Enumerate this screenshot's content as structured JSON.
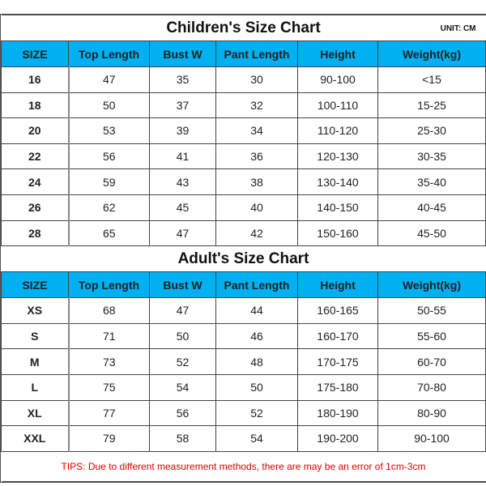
{
  "children": {
    "title": "Children's Size Chart",
    "unit": "UNIT: CM",
    "headers": [
      "SIZE",
      "Top Length",
      "Bust W",
      "Pant Length",
      "Height",
      "Weight(kg)"
    ],
    "rows": [
      [
        "16",
        "47",
        "35",
        "30",
        "90-100",
        "<15"
      ],
      [
        "18",
        "50",
        "37",
        "32",
        "100-110",
        "15-25"
      ],
      [
        "20",
        "53",
        "39",
        "34",
        "110-120",
        "25-30"
      ],
      [
        "22",
        "56",
        "41",
        "36",
        "120-130",
        "30-35"
      ],
      [
        "24",
        "59",
        "43",
        "38",
        "130-140",
        "35-40"
      ],
      [
        "26",
        "62",
        "45",
        "40",
        "140-150",
        "40-45"
      ],
      [
        "28",
        "65",
        "47",
        "42",
        "150-160",
        "45-50"
      ]
    ]
  },
  "adult": {
    "title": "Adult's Size Chart",
    "headers": [
      "SIZE",
      "Top Length",
      "Bust W",
      "Pant Length",
      "Height",
      "Weight(kg)"
    ],
    "rows": [
      [
        "XS",
        "68",
        "47",
        "44",
        "160-165",
        "50-55"
      ],
      [
        "S",
        "71",
        "50",
        "46",
        "160-170",
        "55-60"
      ],
      [
        "M",
        "73",
        "52",
        "48",
        "170-175",
        "60-70"
      ],
      [
        "L",
        "75",
        "54",
        "50",
        "175-180",
        "70-80"
      ],
      [
        "XL",
        "77",
        "56",
        "52",
        "180-190",
        "80-90"
      ],
      [
        "XXL",
        "79",
        "58",
        "54",
        "190-200",
        "90-100"
      ]
    ]
  },
  "tips": "TIPS: Due to different measurement methods, there are may be an error of 1cm-3cm",
  "colors": {
    "header_bg": "#00b0f0",
    "tips_text": "#dd0000"
  }
}
